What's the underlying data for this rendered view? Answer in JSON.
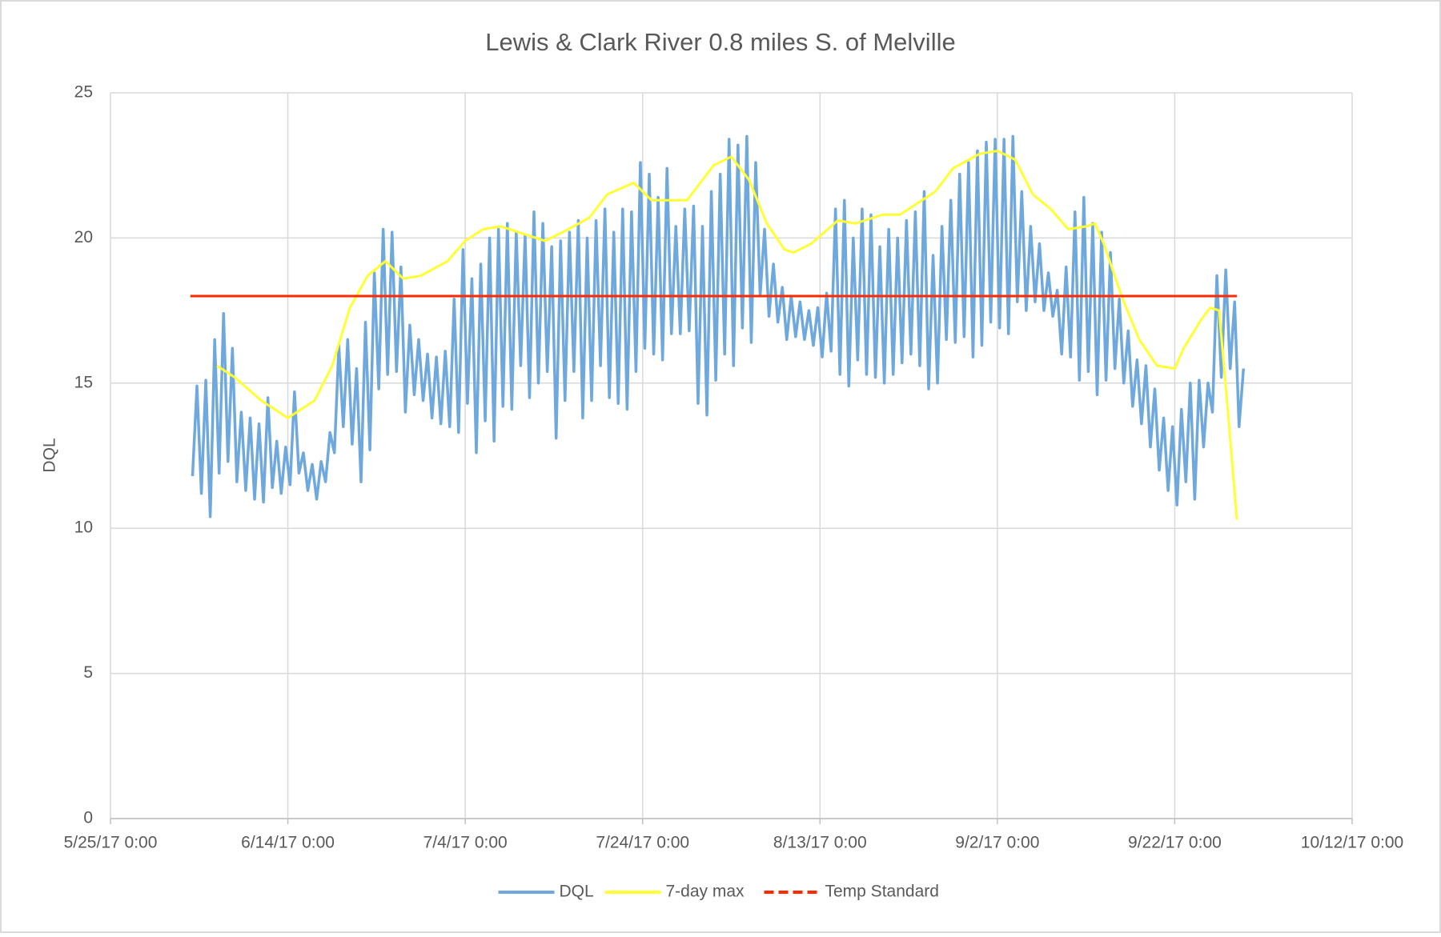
{
  "chart_data": {
    "type": "line",
    "title": "Lewis & Clark River 0.8 miles S. of Melville",
    "ylabel": "DQL",
    "xlim": [
      "5/25/17 0:00",
      "10/12/17 0:00"
    ],
    "xticks": [
      "5/25/17 0:00",
      "6/14/17 0:00",
      "7/4/17 0:00",
      "7/24/17 0:00",
      "8/13/17 0:00",
      "9/2/17 0:00",
      "9/22/17 0:00",
      "10/12/17 0:00"
    ],
    "ylim": [
      0,
      25
    ],
    "yticks": [
      0,
      5,
      10,
      15,
      20,
      25
    ],
    "grid": true,
    "legend": "bottom",
    "series": [
      {
        "name": "DQL",
        "color": "#6fa8dc",
        "x": [
          "6/3/17 6:00",
          "6/3/17 18:00",
          "6/4/17 6:00",
          "6/4/17 18:00",
          "6/5/17 6:00",
          "6/5/17 18:00",
          "6/6/17 6:00",
          "6/6/17 18:00",
          "6/7/17 6:00",
          "6/7/17 18:00",
          "6/8/17 6:00",
          "6/8/17 18:00",
          "6/9/17 6:00",
          "6/9/17 18:00",
          "6/10/17 6:00",
          "6/10/17 18:00",
          "6/11/17 6:00",
          "6/11/17 18:00",
          "6/12/17 6:00",
          "6/12/17 18:00",
          "6/13/17 6:00",
          "6/13/17 18:00",
          "6/14/17 6:00",
          "6/14/17 18:00",
          "6/15/17 6:00",
          "6/15/17 18:00",
          "6/16/17 6:00",
          "6/16/17 18:00",
          "6/17/17 6:00",
          "6/17/17 18:00",
          "6/18/17 6:00",
          "6/18/17 18:00",
          "6/19/17 6:00",
          "6/19/17 18:00",
          "6/20/17 6:00",
          "6/20/17 18:00",
          "6/21/17 6:00",
          "6/21/17 18:00",
          "6/22/17 6:00",
          "6/22/17 18:00",
          "6/23/17 6:00",
          "6/23/17 18:00",
          "6/24/17 6:00",
          "6/24/17 18:00",
          "6/25/17 6:00",
          "6/25/17 18:00",
          "6/26/17 6:00",
          "6/26/17 18:00",
          "6/27/17 6:00",
          "6/27/17 18:00",
          "6/28/17 6:00",
          "6/28/17 18:00",
          "6/29/17 6:00",
          "6/29/17 18:00",
          "6/30/17 6:00",
          "6/30/17 18:00",
          "7/1/17 6:00",
          "7/1/17 18:00",
          "7/2/17 6:00",
          "7/2/17 18:00",
          "7/3/17 6:00",
          "7/3/17 18:00",
          "7/4/17 6:00",
          "7/4/17 18:00",
          "7/5/17 6:00",
          "7/5/17 18:00",
          "7/6/17 6:00",
          "7/6/17 18:00",
          "7/7/17 6:00",
          "7/7/17 18:00",
          "7/8/17 6:00",
          "7/8/17 18:00",
          "7/9/17 6:00",
          "7/9/17 18:00",
          "7/10/17 6:00",
          "7/10/17 18:00",
          "7/11/17 6:00",
          "7/11/17 18:00",
          "7/12/17 6:00",
          "7/12/17 18:00",
          "7/13/17 6:00",
          "7/13/17 18:00",
          "7/14/17 6:00",
          "7/14/17 18:00",
          "7/15/17 6:00",
          "7/15/17 18:00",
          "7/16/17 6:00",
          "7/16/17 18:00",
          "7/17/17 6:00",
          "7/17/17 18:00",
          "7/18/17 6:00",
          "7/18/17 18:00",
          "7/19/17 6:00",
          "7/19/17 18:00",
          "7/20/17 6:00",
          "7/20/17 18:00",
          "7/21/17 6:00",
          "7/21/17 18:00",
          "7/22/17 6:00",
          "7/22/17 18:00",
          "7/23/17 6:00",
          "7/23/17 18:00",
          "7/24/17 6:00",
          "7/24/17 18:00",
          "7/25/17 6:00",
          "7/25/17 18:00",
          "7/26/17 6:00",
          "7/26/17 18:00",
          "7/27/17 6:00",
          "7/27/17 18:00",
          "7/28/17 6:00",
          "7/28/17 18:00",
          "7/29/17 6:00",
          "7/29/17 18:00",
          "7/30/17 6:00",
          "7/30/17 18:00",
          "7/31/17 6:00",
          "7/31/17 18:00",
          "8/1/17 6:00",
          "8/1/17 18:00",
          "8/2/17 6:00",
          "8/2/17 18:00",
          "8/3/17 6:00",
          "8/3/17 18:00",
          "8/4/17 6:00",
          "8/4/17 18:00",
          "8/5/17 6:00",
          "8/5/17 18:00",
          "8/6/17 6:00",
          "8/6/17 18:00",
          "8/7/17 6:00",
          "8/7/17 18:00",
          "8/8/17 6:00",
          "8/8/17 18:00",
          "8/9/17 6:00",
          "8/9/17 18:00",
          "8/10/17 6:00",
          "8/10/17 18:00",
          "8/11/17 6:00",
          "8/11/17 18:00",
          "8/12/17 6:00",
          "8/12/17 18:00",
          "8/13/17 6:00",
          "8/13/17 18:00",
          "8/14/17 6:00",
          "8/14/17 18:00",
          "8/15/17 6:00",
          "8/15/17 18:00",
          "8/16/17 6:00",
          "8/16/17 18:00",
          "8/17/17 6:00",
          "8/17/17 18:00",
          "8/18/17 6:00",
          "8/18/17 18:00",
          "8/19/17 6:00",
          "8/19/17 18:00",
          "8/20/17 6:00",
          "8/20/17 18:00",
          "8/21/17 6:00",
          "8/21/17 18:00",
          "8/22/17 6:00",
          "8/22/17 18:00",
          "8/23/17 6:00",
          "8/23/17 18:00",
          "8/24/17 6:00",
          "8/24/17 18:00",
          "8/25/17 6:00",
          "8/25/17 18:00",
          "8/26/17 6:00",
          "8/26/17 18:00",
          "8/27/17 6:00",
          "8/27/17 18:00",
          "8/28/17 6:00",
          "8/28/17 18:00",
          "8/29/17 6:00",
          "8/29/17 18:00",
          "8/30/17 6:00",
          "8/30/17 18:00",
          "8/31/17 6:00",
          "8/31/17 18:00",
          "9/1/17 6:00",
          "9/1/17 18:00",
          "9/2/17 6:00",
          "9/2/17 18:00",
          "9/3/17 6:00",
          "9/3/17 18:00",
          "9/4/17 6:00",
          "9/4/17 18:00",
          "9/5/17 6:00",
          "9/5/17 18:00",
          "9/6/17 6:00",
          "9/6/17 18:00",
          "9/7/17 6:00",
          "9/7/17 18:00",
          "9/8/17 6:00",
          "9/8/17 18:00",
          "9/9/17 6:00",
          "9/9/17 18:00",
          "9/10/17 6:00",
          "9/10/17 18:00",
          "9/11/17 6:00",
          "9/11/17 18:00",
          "9/12/17 6:00",
          "9/12/17 18:00",
          "9/13/17 6:00",
          "9/13/17 18:00",
          "9/14/17 6:00",
          "9/14/17 18:00",
          "9/15/17 6:00",
          "9/15/17 18:00",
          "9/16/17 6:00",
          "9/16/17 18:00",
          "9/17/17 6:00",
          "9/17/17 18:00",
          "9/18/17 6:00",
          "9/18/17 18:00",
          "9/19/17 6:00",
          "9/19/17 18:00",
          "9/20/17 6:00",
          "9/20/17 18:00",
          "9/21/17 6:00",
          "9/21/17 18:00",
          "9/22/17 6:00",
          "9/22/17 18:00",
          "9/23/17 6:00",
          "9/23/17 18:00",
          "9/24/17 6:00",
          "9/24/17 18:00",
          "9/25/17 6:00",
          "9/25/17 18:00",
          "9/26/17 6:00",
          "9/26/17 18:00",
          "9/27/17 6:00",
          "9/27/17 18:00",
          "9/28/17 6:00",
          "9/28/17 18:00",
          "9/29/17 6:00",
          "9/29/17 18:00"
        ],
        "values": [
          11.8,
          14.9,
          11.2,
          15.1,
          10.4,
          16.5,
          11.9,
          17.4,
          12.3,
          16.2,
          11.6,
          14.0,
          11.3,
          13.8,
          11.0,
          13.6,
          10.9,
          14.5,
          11.4,
          13.0,
          11.2,
          12.8,
          11.5,
          14.7,
          11.9,
          12.6,
          11.3,
          12.2,
          11.0,
          12.3,
          11.6,
          13.3,
          12.6,
          16.3,
          13.5,
          16.5,
          12.9,
          15.5,
          11.6,
          17.1,
          12.7,
          18.8,
          14.8,
          20.3,
          15.3,
          20.2,
          15.4,
          19.0,
          14.0,
          17.0,
          14.6,
          16.5,
          14.4,
          16.0,
          13.8,
          15.9,
          13.6,
          16.1,
          13.5,
          17.9,
          13.3,
          19.6,
          14.3,
          18.6,
          12.6,
          19.1,
          13.7,
          20.0,
          13.0,
          20.3,
          14.2,
          20.5,
          14.1,
          20.2,
          15.6,
          20.1,
          14.5,
          20.9,
          15.0,
          20.5,
          15.4,
          19.7,
          13.1,
          19.9,
          14.4,
          20.2,
          15.4,
          20.6,
          13.8,
          20.0,
          14.4,
          20.6,
          15.6,
          21.0,
          14.5,
          20.2,
          14.3,
          21.0,
          14.1,
          20.9,
          15.4,
          22.6,
          16.2,
          22.2,
          16.0,
          21.4,
          15.8,
          22.4,
          16.7,
          20.4,
          16.7,
          21.0,
          16.8,
          21.1,
          14.3,
          20.4,
          13.9,
          21.6,
          15.1,
          22.2,
          16.0,
          23.4,
          15.6,
          23.2,
          16.9,
          23.5,
          16.4,
          22.6,
          18.0,
          20.3,
          17.3,
          19.1,
          17.1,
          18.3,
          16.5,
          18.0,
          16.6,
          17.8,
          16.5,
          17.5,
          16.3,
          17.6,
          15.9,
          18.1,
          16.1,
          21.0,
          15.3,
          21.3,
          14.9,
          20.0,
          15.8,
          21.0,
          15.3,
          20.8,
          15.2,
          19.7,
          15.0,
          20.3,
          15.3,
          20.0,
          15.7,
          20.6,
          16.0,
          20.9,
          15.6,
          21.6,
          14.8,
          19.4,
          15.0,
          20.4,
          16.5,
          21.3,
          16.4,
          22.2,
          16.6,
          22.6,
          15.9,
          23.0,
          16.3,
          23.3,
          17.1,
          23.4,
          16.9,
          23.4,
          16.7,
          23.5,
          17.8,
          21.6,
          17.5,
          20.4,
          17.8,
          19.8,
          17.5,
          18.8,
          17.3,
          18.2,
          16.0,
          19.0,
          15.9,
          20.9,
          15.1,
          21.4,
          15.4,
          20.5,
          14.6,
          20.2,
          15.1,
          19.5,
          15.5,
          17.9,
          15.0,
          16.8,
          14.2,
          15.8,
          13.6,
          15.6,
          12.8,
          14.8,
          12.0,
          13.8,
          11.3,
          13.5,
          10.8,
          14.1,
          11.6,
          15.0,
          11.0,
          15.1,
          12.8,
          15.0,
          14.0,
          18.7,
          15.2,
          18.9,
          15.5,
          17.8,
          13.5,
          15.5
        ]
      },
      {
        "name": "7-day max",
        "color": "#ffff33",
        "x": [
          "6/6/17 0:00",
          "6/8/17 0:00",
          "6/11/17 0:00",
          "6/14/17 0:00",
          "6/17/17 0:00",
          "6/19/17 0:00",
          "6/21/17 0:00",
          "6/23/17 0:00",
          "6/25/17 0:00",
          "6/27/17 0:00",
          "6/29/17 0:00",
          "7/2/17 0:00",
          "7/4/17 0:00",
          "7/6/17 0:00",
          "7/8/17 0:00",
          "7/10/17 0:00",
          "7/13/17 0:00",
          "7/15/17 0:00",
          "7/18/17 0:00",
          "7/20/17 0:00",
          "7/23/17 0:00",
          "7/25/17 0:00",
          "7/29/17 0:00",
          "8/1/17 0:00",
          "8/3/17 0:00",
          "8/5/17 0:00",
          "8/7/17 0:00",
          "8/9/17 0:00",
          "8/10/17 0:00",
          "8/12/17 0:00",
          "8/15/17 0:00",
          "8/17/17 0:00",
          "8/20/17 0:00",
          "8/22/17 0:00",
          "8/24/17 0:00",
          "8/26/17 0:00",
          "8/28/17 0:00",
          "8/31/17 0:00",
          "9/2/17 0:00",
          "9/4/17 0:00",
          "9/6/17 0:00",
          "9/8/17 0:00",
          "9/10/17 0:00",
          "9/12/17 0:00",
          "9/13/17 0:00",
          "9/14/17 0:00",
          "9/16/17 0:00",
          "9/18/17 0:00",
          "9/20/17 0:00",
          "9/22/17 0:00",
          "9/23/17 0:00",
          "9/25/17 0:00",
          "9/26/17 0:00",
          "9/27/17 0:00",
          "9/28/17 0:00",
          "9/29/17 0:00"
        ],
        "values": [
          15.6,
          15.2,
          14.4,
          13.8,
          14.4,
          15.6,
          17.6,
          18.7,
          19.2,
          18.6,
          18.7,
          19.2,
          19.9,
          20.3,
          20.4,
          20.2,
          19.9,
          20.2,
          20.7,
          21.5,
          21.9,
          21.3,
          21.3,
          22.5,
          22.8,
          22.0,
          20.5,
          19.6,
          19.5,
          19.8,
          20.6,
          20.5,
          20.8,
          20.8,
          21.2,
          21.6,
          22.4,
          22.9,
          23.0,
          22.7,
          21.5,
          21.0,
          20.3,
          20.4,
          20.5,
          19.8,
          18.0,
          16.5,
          15.6,
          15.5,
          16.2,
          17.2,
          17.6,
          17.5,
          14.0,
          10.3
        ]
      },
      {
        "name": "Temp Standard",
        "color": "#ff2a00",
        "legend_dash": true,
        "x": [
          "6/3/17 0:00",
          "9/29/17 0:00"
        ],
        "values": [
          18,
          18
        ]
      }
    ]
  }
}
